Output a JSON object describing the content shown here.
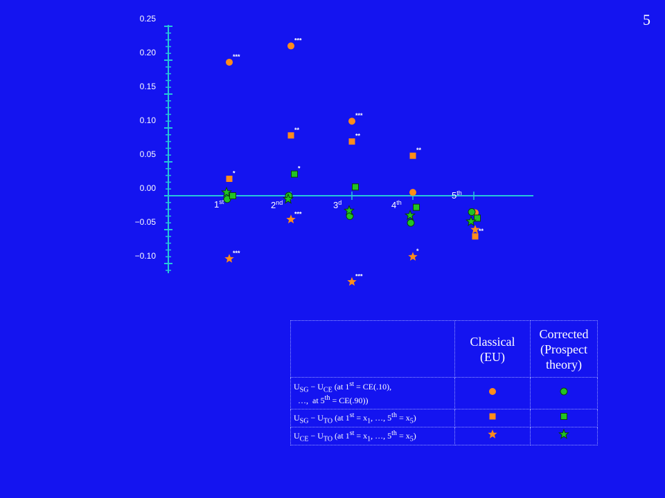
{
  "slide_number": "5",
  "chart_data": {
    "type": "scatter",
    "ylim": [
      -0.13,
      0.25
    ],
    "y_ticks": [
      {
        "value": 0.25,
        "label": "0.25"
      },
      {
        "value": 0.2,
        "label": "0.20"
      },
      {
        "value": 0.15,
        "label": "0.15"
      },
      {
        "value": 0.1,
        "label": "0.10"
      },
      {
        "value": 0.05,
        "label": "0.05"
      },
      {
        "value": 0.0,
        "label": "0.00"
      },
      {
        "value": -0.05,
        "label": "−0.05"
      },
      {
        "value": -0.1,
        "label": "−0.10"
      }
    ],
    "categories": [
      {
        "base": "1",
        "sup": "st"
      },
      {
        "base": "2",
        "sup": "nd"
      },
      {
        "base": "3",
        "sup": "d"
      },
      {
        "base": "4",
        "sup": "th"
      },
      {
        "base": "5",
        "sup": "th"
      }
    ],
    "colors": {
      "classical": "#ff8c1a",
      "corrected": "#22c422",
      "background": "#1414f0",
      "axis": "#26c6da"
    },
    "points": [
      {
        "x": 1,
        "y": 0.197,
        "shape": "circle",
        "model": "classical",
        "sig": "***"
      },
      {
        "x": 2,
        "y": 0.221,
        "shape": "circle",
        "model": "classical",
        "sig": "***"
      },
      {
        "x": 3,
        "y": 0.11,
        "shape": "circle",
        "model": "classical",
        "sig": "***"
      },
      {
        "x": 4,
        "y": 0.005,
        "shape": "circle",
        "model": "classical",
        "sig": ""
      },
      {
        "x": 5,
        "y": -0.025,
        "shape": "circle",
        "model": "classical",
        "sig": ""
      },
      {
        "x": 1,
        "y": 0.025,
        "shape": "square",
        "model": "classical",
        "sig": "*"
      },
      {
        "x": 2,
        "y": 0.089,
        "shape": "square",
        "model": "classical",
        "sig": "**"
      },
      {
        "x": 3,
        "y": 0.08,
        "shape": "square",
        "model": "classical",
        "sig": "**"
      },
      {
        "x": 4,
        "y": 0.059,
        "shape": "square",
        "model": "classical",
        "sig": "**"
      },
      {
        "x": 5,
        "y": -0.06,
        "shape": "square",
        "model": "classical",
        "sig": "**"
      },
      {
        "x": 1,
        "y": -0.093,
        "shape": "star",
        "model": "classical",
        "sig": "***"
      },
      {
        "x": 2,
        "y": -0.035,
        "shape": "star",
        "model": "classical",
        "sig": "***"
      },
      {
        "x": 3,
        "y": -0.127,
        "shape": "star",
        "model": "classical",
        "sig": "***"
      },
      {
        "x": 4,
        "y": -0.09,
        "shape": "star",
        "model": "classical",
        "sig": "*"
      },
      {
        "x": 5,
        "y": -0.05,
        "shape": "star",
        "model": "classical",
        "sig": ""
      },
      {
        "x": 1,
        "y": -0.005,
        "shape": "circle",
        "model": "corrected",
        "sig": ""
      },
      {
        "x": 2,
        "y": 0.0,
        "shape": "circle",
        "model": "corrected",
        "sig": ""
      },
      {
        "x": 3,
        "y": -0.03,
        "shape": "circle",
        "model": "corrected",
        "sig": ""
      },
      {
        "x": 4,
        "y": -0.04,
        "shape": "circle",
        "model": "corrected",
        "sig": ""
      },
      {
        "x": 5,
        "y": -0.024,
        "shape": "circle",
        "model": "corrected",
        "sig": ""
      },
      {
        "x": 1,
        "y": 0.0,
        "shape": "square",
        "model": "corrected",
        "sig": ""
      },
      {
        "x": 2,
        "y": 0.032,
        "shape": "square",
        "model": "corrected",
        "sig": "*"
      },
      {
        "x": 3,
        "y": 0.013,
        "shape": "square",
        "model": "corrected",
        "sig": ""
      },
      {
        "x": 4,
        "y": -0.017,
        "shape": "square",
        "model": "corrected",
        "sig": ""
      },
      {
        "x": 5,
        "y": -0.033,
        "shape": "square",
        "model": "corrected",
        "sig": ""
      },
      {
        "x": 1,
        "y": 0.005,
        "shape": "star",
        "model": "corrected",
        "sig": ""
      },
      {
        "x": 2,
        "y": -0.005,
        "shape": "star",
        "model": "corrected",
        "sig": ""
      },
      {
        "x": 3,
        "y": -0.022,
        "shape": "star",
        "model": "corrected",
        "sig": ""
      },
      {
        "x": 4,
        "y": -0.029,
        "shape": "star",
        "model": "corrected",
        "sig": ""
      },
      {
        "x": 5,
        "y": -0.038,
        "shape": "star",
        "model": "corrected",
        "sig": ""
      }
    ]
  },
  "legend": {
    "col_classical": [
      "Classical",
      "(EU)"
    ],
    "col_corrected": [
      "Corrected",
      "(Prospect",
      "theory)"
    ],
    "rows": [
      {
        "name": "sg-ce",
        "shape": "circle",
        "label_html": "U<sub>SG</sub> − U<sub>CE</sub> (at 1<sup>st</sup> = CE(.10),<br>&nbsp;&nbsp;…,&nbsp; at 5<sup>th</sup> = CE(.90))"
      },
      {
        "name": "sg-to",
        "shape": "square",
        "label_html": "U<sub>SG</sub> − U<sub>TO</sub> (at 1<sup>st</sup> = x<sub>1</sub>, …, 5<sup>th</sup> = x<sub>5</sub>)"
      },
      {
        "name": "ce-to",
        "shape": "star",
        "label_html": "U<sub>CE</sub> − U<sub>TO</sub> (at 1<sup>st</sup> = x<sub>1</sub>, …, 5<sup>th</sup> = x<sub>5</sub>)"
      }
    ]
  }
}
